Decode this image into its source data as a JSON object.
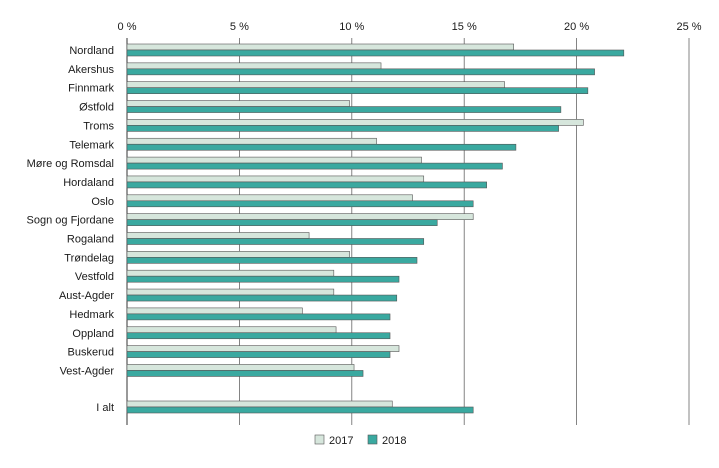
{
  "chart_data": {
    "type": "bar",
    "orientation": "horizontal",
    "title": "",
    "xlabel": "",
    "ylabel": "",
    "xlim": [
      0,
      25
    ],
    "x_ticks": [
      0,
      5,
      10,
      15,
      20,
      25
    ],
    "x_tick_labels": [
      "0 %",
      "5 %",
      "10 %",
      "15 %",
      "20 %",
      "25 %"
    ],
    "grid": "vertical",
    "legend_position": "bottom-center",
    "categories": [
      "Nordland",
      "Akershus",
      "Finnmark",
      "Østfold",
      "Troms",
      "Telemark",
      "Møre og Romsdal",
      "Hordaland",
      "Oslo",
      "Sogn og Fjordane",
      "Rogaland",
      "Trøndelag",
      "Vestfold",
      "Aust-Agder",
      "Hedmark",
      "Oppland",
      "Buskerud",
      "Vest-Agder",
      "I alt"
    ],
    "gap_before_category": "I alt",
    "series": [
      {
        "name": "2017",
        "color": "#d6e6dc",
        "stroke": "#555555",
        "values": [
          17.2,
          11.3,
          16.8,
          9.9,
          20.3,
          11.1,
          13.1,
          13.2,
          12.7,
          15.4,
          8.1,
          9.9,
          9.2,
          9.2,
          7.8,
          9.3,
          12.1,
          10.1,
          11.8
        ]
      },
      {
        "name": "2018",
        "color": "#3aa9a0",
        "stroke": "#555555",
        "values": [
          22.1,
          20.8,
          20.5,
          19.3,
          19.2,
          17.3,
          16.7,
          16.0,
          15.4,
          13.8,
          13.2,
          12.9,
          12.1,
          12.0,
          11.7,
          11.7,
          11.7,
          10.5,
          15.4
        ]
      }
    ]
  }
}
